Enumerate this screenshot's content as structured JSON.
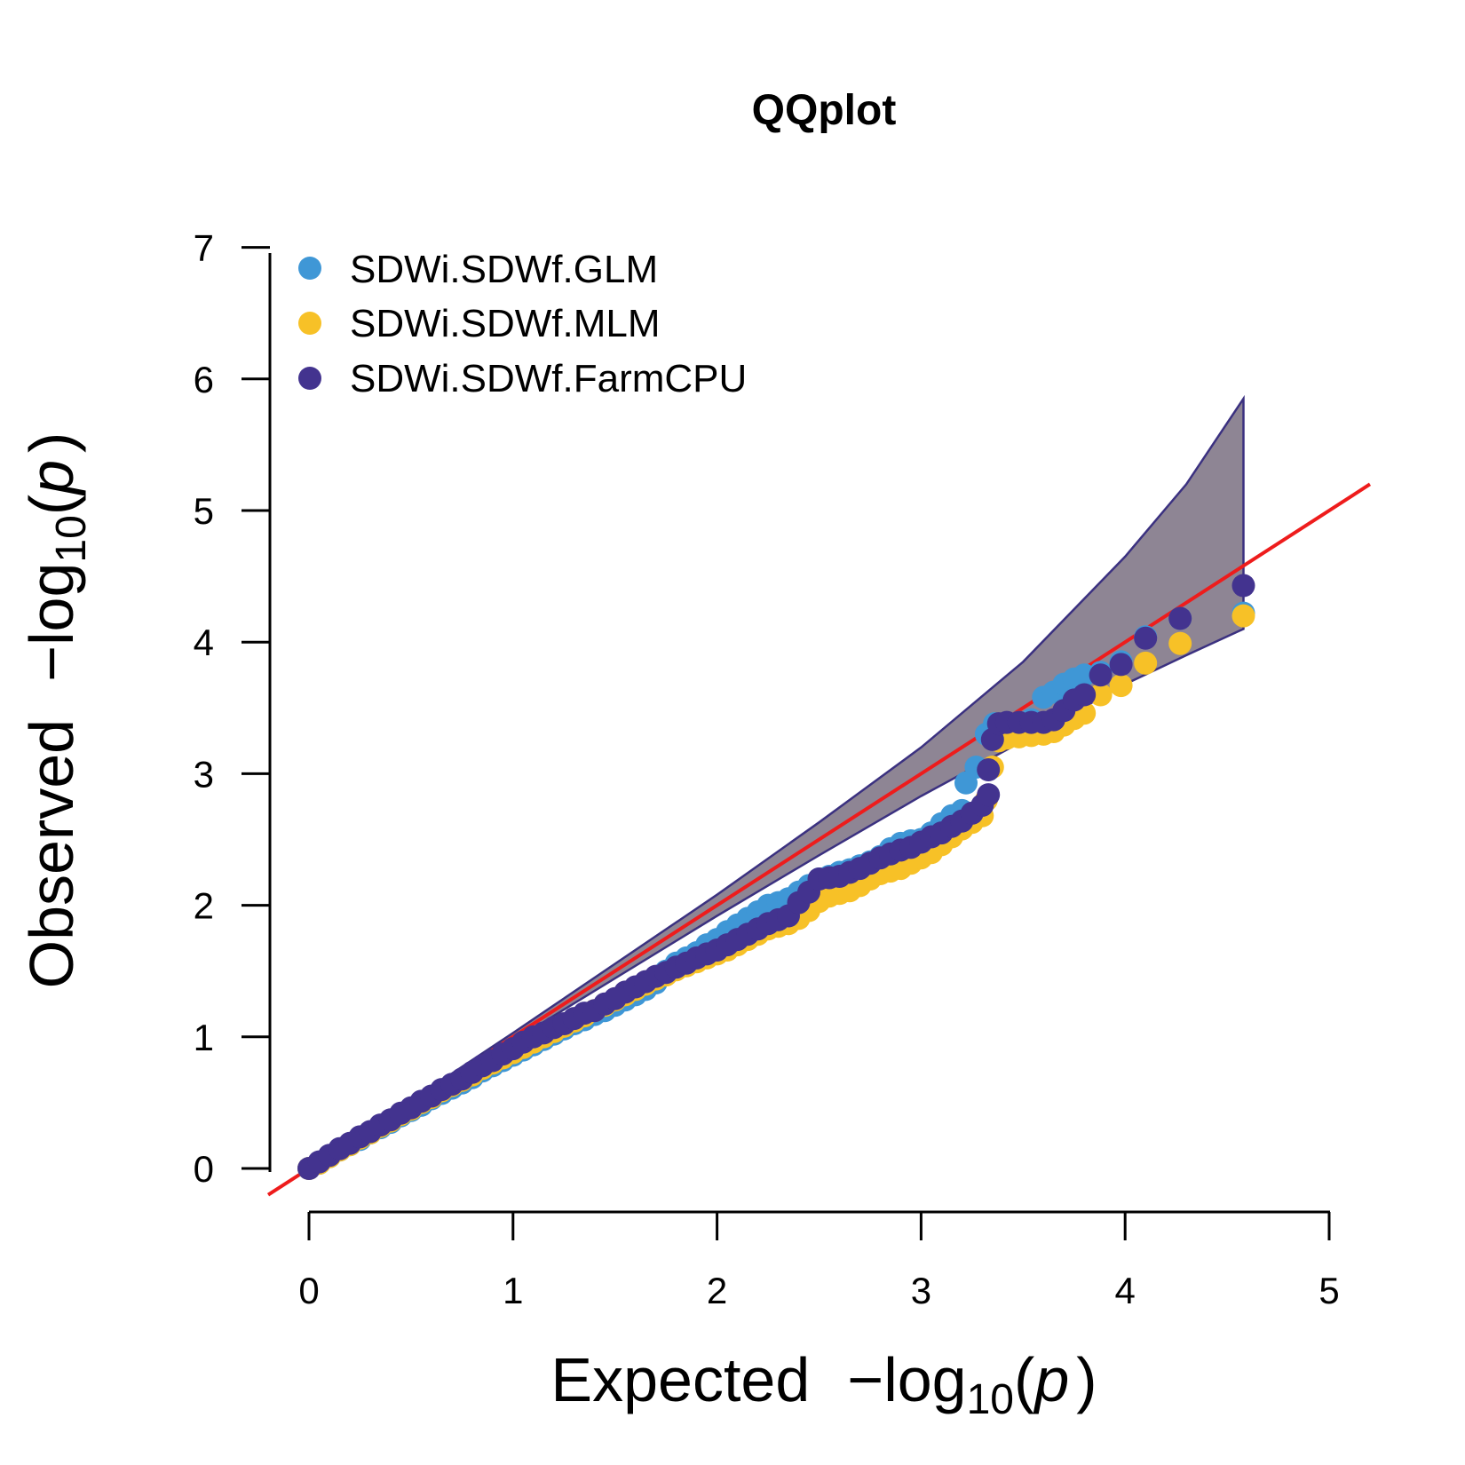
{
  "chart_data": {
    "type": "scatter",
    "title": "QQplot",
    "xlabel": {
      "prefix": "Expected",
      "neg": "−",
      "log": "log",
      "sub": "10",
      "open": "(",
      "var": "p",
      "close": ")"
    },
    "ylabel": {
      "prefix": "Observed",
      "neg": "−",
      "log": "log",
      "sub": "10",
      "open": "(",
      "var": "p",
      "close": ")"
    },
    "xlim": [
      0,
      5
    ],
    "ylim": [
      0,
      7
    ],
    "xticks": [
      "0",
      "1",
      "2",
      "3",
      "4",
      "5"
    ],
    "yticks": [
      "0",
      "1",
      "2",
      "3",
      "4",
      "5",
      "6",
      "7"
    ],
    "grid": false,
    "legend_position": "top-left",
    "reference_line": {
      "slope": 1,
      "intercept": 0,
      "color": "#ee1c1c"
    },
    "confidence_band": {
      "fill": "#8e8594",
      "stroke": "#3b3180",
      "x": [
        0,
        1,
        2,
        2.5,
        3,
        3.5,
        4,
        4.3,
        4.58
      ],
      "upper": [
        0,
        1.03,
        2.08,
        2.63,
        3.2,
        3.85,
        4.65,
        5.2,
        5.85
      ],
      "lower": [
        0,
        0.97,
        1.92,
        2.38,
        2.83,
        3.25,
        3.68,
        3.9,
        4.1
      ]
    },
    "series": [
      {
        "name": "SDWi.SDWf.GLM",
        "color": "#3f97d6",
        "points": [
          [
            0,
            0
          ],
          [
            0.05,
            0.04
          ],
          [
            0.1,
            0.09
          ],
          [
            0.15,
            0.14
          ],
          [
            0.2,
            0.18
          ],
          [
            0.25,
            0.22
          ],
          [
            0.3,
            0.27
          ],
          [
            0.35,
            0.31
          ],
          [
            0.4,
            0.35
          ],
          [
            0.45,
            0.4
          ],
          [
            0.5,
            0.44
          ],
          [
            0.55,
            0.48
          ],
          [
            0.6,
            0.53
          ],
          [
            0.65,
            0.57
          ],
          [
            0.7,
            0.61
          ],
          [
            0.75,
            0.65
          ],
          [
            0.8,
            0.69
          ],
          [
            0.85,
            0.74
          ],
          [
            0.9,
            0.78
          ],
          [
            0.95,
            0.82
          ],
          [
            1.0,
            0.86
          ],
          [
            1.05,
            0.9
          ],
          [
            1.1,
            0.94
          ],
          [
            1.15,
            0.98
          ],
          [
            1.2,
            1.02
          ],
          [
            1.25,
            1.06
          ],
          [
            1.3,
            1.1
          ],
          [
            1.35,
            1.13
          ],
          [
            1.4,
            1.17
          ],
          [
            1.45,
            1.2
          ],
          [
            1.5,
            1.24
          ],
          [
            1.55,
            1.28
          ],
          [
            1.6,
            1.32
          ],
          [
            1.65,
            1.36
          ],
          [
            1.7,
            1.41
          ],
          [
            1.75,
            1.5
          ],
          [
            1.8,
            1.56
          ],
          [
            1.85,
            1.6
          ],
          [
            1.9,
            1.64
          ],
          [
            1.95,
            1.7
          ],
          [
            2.0,
            1.74
          ],
          [
            2.05,
            1.8
          ],
          [
            2.1,
            1.85
          ],
          [
            2.15,
            1.9
          ],
          [
            2.2,
            1.95
          ],
          [
            2.25,
            2.0
          ],
          [
            2.3,
            2.02
          ],
          [
            2.35,
            2.05
          ],
          [
            2.4,
            2.1
          ],
          [
            2.45,
            2.15
          ],
          [
            2.5,
            2.2
          ],
          [
            2.55,
            2.22
          ],
          [
            2.6,
            2.25
          ],
          [
            2.65,
            2.27
          ],
          [
            2.7,
            2.3
          ],
          [
            2.75,
            2.33
          ],
          [
            2.8,
            2.37
          ],
          [
            2.85,
            2.43
          ],
          [
            2.9,
            2.47
          ],
          [
            2.95,
            2.49
          ],
          [
            3.0,
            2.5
          ],
          [
            3.05,
            2.55
          ],
          [
            3.1,
            2.62
          ],
          [
            3.15,
            2.68
          ],
          [
            3.2,
            2.72
          ],
          [
            3.22,
            2.93
          ],
          [
            3.27,
            3.05
          ],
          [
            3.32,
            3.3
          ],
          [
            3.36,
            3.38
          ],
          [
            3.42,
            3.38
          ],
          [
            3.48,
            3.39
          ],
          [
            3.54,
            3.41
          ],
          [
            3.6,
            3.58
          ],
          [
            3.65,
            3.62
          ],
          [
            3.7,
            3.68
          ],
          [
            3.75,
            3.72
          ],
          [
            3.8,
            3.75
          ],
          [
            3.88,
            3.77
          ],
          [
            3.98,
            3.85
          ],
          [
            4.1,
            4.04
          ],
          [
            4.27,
            4.18
          ],
          [
            4.58,
            4.22
          ]
        ]
      },
      {
        "name": "SDWi.SDWf.MLM",
        "color": "#f7c127",
        "points": [
          [
            0,
            0
          ],
          [
            0.05,
            0.04
          ],
          [
            0.1,
            0.09
          ],
          [
            0.15,
            0.14
          ],
          [
            0.2,
            0.18
          ],
          [
            0.25,
            0.23
          ],
          [
            0.3,
            0.27
          ],
          [
            0.35,
            0.32
          ],
          [
            0.4,
            0.36
          ],
          [
            0.45,
            0.41
          ],
          [
            0.5,
            0.45
          ],
          [
            0.55,
            0.5
          ],
          [
            0.6,
            0.54
          ],
          [
            0.65,
            0.59
          ],
          [
            0.7,
            0.63
          ],
          [
            0.75,
            0.67
          ],
          [
            0.8,
            0.71
          ],
          [
            0.85,
            0.76
          ],
          [
            0.9,
            0.8
          ],
          [
            0.95,
            0.84
          ],
          [
            1.0,
            0.88
          ],
          [
            1.05,
            0.92
          ],
          [
            1.1,
            0.96
          ],
          [
            1.15,
            1.0
          ],
          [
            1.2,
            1.04
          ],
          [
            1.25,
            1.08
          ],
          [
            1.3,
            1.12
          ],
          [
            1.35,
            1.16
          ],
          [
            1.4,
            1.2
          ],
          [
            1.45,
            1.24
          ],
          [
            1.5,
            1.28
          ],
          [
            1.55,
            1.32
          ],
          [
            1.6,
            1.36
          ],
          [
            1.65,
            1.4
          ],
          [
            1.7,
            1.44
          ],
          [
            1.75,
            1.47
          ],
          [
            1.8,
            1.51
          ],
          [
            1.85,
            1.54
          ],
          [
            1.9,
            1.57
          ],
          [
            1.95,
            1.6
          ],
          [
            2.0,
            1.63
          ],
          [
            2.05,
            1.66
          ],
          [
            2.1,
            1.7
          ],
          [
            2.15,
            1.74
          ],
          [
            2.2,
            1.78
          ],
          [
            2.25,
            1.82
          ],
          [
            2.3,
            1.84
          ],
          [
            2.35,
            1.86
          ],
          [
            2.4,
            1.9
          ],
          [
            2.45,
            1.96
          ],
          [
            2.5,
            2.03
          ],
          [
            2.55,
            2.07
          ],
          [
            2.6,
            2.09
          ],
          [
            2.65,
            2.11
          ],
          [
            2.7,
            2.15
          ],
          [
            2.75,
            2.2
          ],
          [
            2.8,
            2.24
          ],
          [
            2.85,
            2.26
          ],
          [
            2.9,
            2.28
          ],
          [
            2.95,
            2.32
          ],
          [
            3.0,
            2.36
          ],
          [
            3.05,
            2.4
          ],
          [
            3.1,
            2.46
          ],
          [
            3.15,
            2.52
          ],
          [
            3.2,
            2.58
          ],
          [
            3.25,
            2.63
          ],
          [
            3.3,
            2.68
          ],
          [
            3.32,
            2.8
          ],
          [
            3.35,
            3.05
          ],
          [
            3.38,
            3.25
          ],
          [
            3.42,
            3.27
          ],
          [
            3.48,
            3.28
          ],
          [
            3.54,
            3.29
          ],
          [
            3.6,
            3.3
          ],
          [
            3.65,
            3.32
          ],
          [
            3.7,
            3.37
          ],
          [
            3.75,
            3.42
          ],
          [
            3.8,
            3.46
          ],
          [
            3.88,
            3.6
          ],
          [
            3.98,
            3.67
          ],
          [
            4.1,
            3.84
          ],
          [
            4.27,
            3.99
          ],
          [
            4.58,
            4.2
          ]
        ]
      },
      {
        "name": "SDWi.SDWf.FarmCPU",
        "color": "#43338f",
        "points": [
          [
            0,
            0
          ],
          [
            0.05,
            0.05
          ],
          [
            0.1,
            0.1
          ],
          [
            0.15,
            0.15
          ],
          [
            0.2,
            0.19
          ],
          [
            0.25,
            0.24
          ],
          [
            0.3,
            0.28
          ],
          [
            0.35,
            0.33
          ],
          [
            0.4,
            0.37
          ],
          [
            0.45,
            0.42
          ],
          [
            0.5,
            0.46
          ],
          [
            0.55,
            0.51
          ],
          [
            0.6,
            0.55
          ],
          [
            0.65,
            0.6
          ],
          [
            0.7,
            0.64
          ],
          [
            0.75,
            0.68
          ],
          [
            0.8,
            0.73
          ],
          [
            0.85,
            0.78
          ],
          [
            0.9,
            0.82
          ],
          [
            0.95,
            0.87
          ],
          [
            1.0,
            0.91
          ],
          [
            1.05,
            0.96
          ],
          [
            1.1,
            1.0
          ],
          [
            1.15,
            1.03
          ],
          [
            1.2,
            1.07
          ],
          [
            1.25,
            1.1
          ],
          [
            1.3,
            1.14
          ],
          [
            1.35,
            1.18
          ],
          [
            1.4,
            1.2
          ],
          [
            1.45,
            1.25
          ],
          [
            1.5,
            1.29
          ],
          [
            1.55,
            1.34
          ],
          [
            1.6,
            1.38
          ],
          [
            1.65,
            1.42
          ],
          [
            1.7,
            1.46
          ],
          [
            1.75,
            1.49
          ],
          [
            1.8,
            1.53
          ],
          [
            1.85,
            1.56
          ],
          [
            1.9,
            1.6
          ],
          [
            1.95,
            1.63
          ],
          [
            2.0,
            1.66
          ],
          [
            2.05,
            1.7
          ],
          [
            2.1,
            1.74
          ],
          [
            2.15,
            1.78
          ],
          [
            2.2,
            1.82
          ],
          [
            2.25,
            1.86
          ],
          [
            2.3,
            1.89
          ],
          [
            2.35,
            1.92
          ],
          [
            2.4,
            2.02
          ],
          [
            2.45,
            2.1
          ],
          [
            2.5,
            2.2
          ],
          [
            2.55,
            2.21
          ],
          [
            2.6,
            2.22
          ],
          [
            2.65,
            2.25
          ],
          [
            2.7,
            2.28
          ],
          [
            2.75,
            2.32
          ],
          [
            2.8,
            2.36
          ],
          [
            2.85,
            2.39
          ],
          [
            2.9,
            2.42
          ],
          [
            2.95,
            2.44
          ],
          [
            3.0,
            2.48
          ],
          [
            3.05,
            2.52
          ],
          [
            3.1,
            2.55
          ],
          [
            3.15,
            2.6
          ],
          [
            3.2,
            2.64
          ],
          [
            3.25,
            2.7
          ],
          [
            3.3,
            2.76
          ],
          [
            3.33,
            2.84
          ],
          [
            3.33,
            3.03
          ],
          [
            3.35,
            3.26
          ],
          [
            3.38,
            3.38
          ],
          [
            3.42,
            3.39
          ],
          [
            3.48,
            3.39
          ],
          [
            3.54,
            3.39
          ],
          [
            3.6,
            3.39
          ],
          [
            3.65,
            3.41
          ],
          [
            3.7,
            3.48
          ],
          [
            3.75,
            3.56
          ],
          [
            3.8,
            3.6
          ],
          [
            3.88,
            3.75
          ],
          [
            3.98,
            3.83
          ],
          [
            4.1,
            4.03
          ],
          [
            4.27,
            4.18
          ],
          [
            4.58,
            4.43
          ]
        ]
      }
    ]
  }
}
